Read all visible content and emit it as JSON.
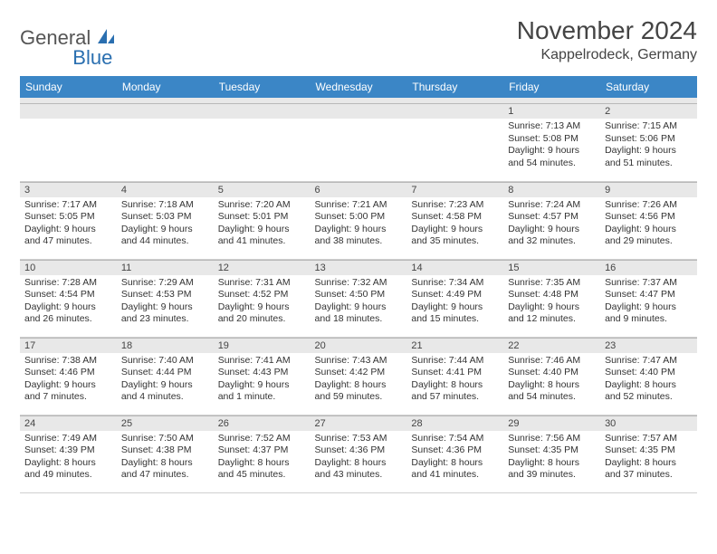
{
  "logo": {
    "word1": "General",
    "word2": "Blue"
  },
  "title": "November 2024",
  "location": "Kappelrodeck, Germany",
  "header_bg": "#3b86c6",
  "weekdays": [
    "Sunday",
    "Monday",
    "Tuesday",
    "Wednesday",
    "Thursday",
    "Friday",
    "Saturday"
  ],
  "weeks": [
    [
      null,
      null,
      null,
      null,
      null,
      {
        "d": "1",
        "sr": "Sunrise: 7:13 AM",
        "ss": "Sunset: 5:08 PM",
        "dl": "Daylight: 9 hours and 54 minutes."
      },
      {
        "d": "2",
        "sr": "Sunrise: 7:15 AM",
        "ss": "Sunset: 5:06 PM",
        "dl": "Daylight: 9 hours and 51 minutes."
      }
    ],
    [
      {
        "d": "3",
        "sr": "Sunrise: 7:17 AM",
        "ss": "Sunset: 5:05 PM",
        "dl": "Daylight: 9 hours and 47 minutes."
      },
      {
        "d": "4",
        "sr": "Sunrise: 7:18 AM",
        "ss": "Sunset: 5:03 PM",
        "dl": "Daylight: 9 hours and 44 minutes."
      },
      {
        "d": "5",
        "sr": "Sunrise: 7:20 AM",
        "ss": "Sunset: 5:01 PM",
        "dl": "Daylight: 9 hours and 41 minutes."
      },
      {
        "d": "6",
        "sr": "Sunrise: 7:21 AM",
        "ss": "Sunset: 5:00 PM",
        "dl": "Daylight: 9 hours and 38 minutes."
      },
      {
        "d": "7",
        "sr": "Sunrise: 7:23 AM",
        "ss": "Sunset: 4:58 PM",
        "dl": "Daylight: 9 hours and 35 minutes."
      },
      {
        "d": "8",
        "sr": "Sunrise: 7:24 AM",
        "ss": "Sunset: 4:57 PM",
        "dl": "Daylight: 9 hours and 32 minutes."
      },
      {
        "d": "9",
        "sr": "Sunrise: 7:26 AM",
        "ss": "Sunset: 4:56 PM",
        "dl": "Daylight: 9 hours and 29 minutes."
      }
    ],
    [
      {
        "d": "10",
        "sr": "Sunrise: 7:28 AM",
        "ss": "Sunset: 4:54 PM",
        "dl": "Daylight: 9 hours and 26 minutes."
      },
      {
        "d": "11",
        "sr": "Sunrise: 7:29 AM",
        "ss": "Sunset: 4:53 PM",
        "dl": "Daylight: 9 hours and 23 minutes."
      },
      {
        "d": "12",
        "sr": "Sunrise: 7:31 AM",
        "ss": "Sunset: 4:52 PM",
        "dl": "Daylight: 9 hours and 20 minutes."
      },
      {
        "d": "13",
        "sr": "Sunrise: 7:32 AM",
        "ss": "Sunset: 4:50 PM",
        "dl": "Daylight: 9 hours and 18 minutes."
      },
      {
        "d": "14",
        "sr": "Sunrise: 7:34 AM",
        "ss": "Sunset: 4:49 PM",
        "dl": "Daylight: 9 hours and 15 minutes."
      },
      {
        "d": "15",
        "sr": "Sunrise: 7:35 AM",
        "ss": "Sunset: 4:48 PM",
        "dl": "Daylight: 9 hours and 12 minutes."
      },
      {
        "d": "16",
        "sr": "Sunrise: 7:37 AM",
        "ss": "Sunset: 4:47 PM",
        "dl": "Daylight: 9 hours and 9 minutes."
      }
    ],
    [
      {
        "d": "17",
        "sr": "Sunrise: 7:38 AM",
        "ss": "Sunset: 4:46 PM",
        "dl": "Daylight: 9 hours and 7 minutes."
      },
      {
        "d": "18",
        "sr": "Sunrise: 7:40 AM",
        "ss": "Sunset: 4:44 PM",
        "dl": "Daylight: 9 hours and 4 minutes."
      },
      {
        "d": "19",
        "sr": "Sunrise: 7:41 AM",
        "ss": "Sunset: 4:43 PM",
        "dl": "Daylight: 9 hours and 1 minute."
      },
      {
        "d": "20",
        "sr": "Sunrise: 7:43 AM",
        "ss": "Sunset: 4:42 PM",
        "dl": "Daylight: 8 hours and 59 minutes."
      },
      {
        "d": "21",
        "sr": "Sunrise: 7:44 AM",
        "ss": "Sunset: 4:41 PM",
        "dl": "Daylight: 8 hours and 57 minutes."
      },
      {
        "d": "22",
        "sr": "Sunrise: 7:46 AM",
        "ss": "Sunset: 4:40 PM",
        "dl": "Daylight: 8 hours and 54 minutes."
      },
      {
        "d": "23",
        "sr": "Sunrise: 7:47 AM",
        "ss": "Sunset: 4:40 PM",
        "dl": "Daylight: 8 hours and 52 minutes."
      }
    ],
    [
      {
        "d": "24",
        "sr": "Sunrise: 7:49 AM",
        "ss": "Sunset: 4:39 PM",
        "dl": "Daylight: 8 hours and 49 minutes."
      },
      {
        "d": "25",
        "sr": "Sunrise: 7:50 AM",
        "ss": "Sunset: 4:38 PM",
        "dl": "Daylight: 8 hours and 47 minutes."
      },
      {
        "d": "26",
        "sr": "Sunrise: 7:52 AM",
        "ss": "Sunset: 4:37 PM",
        "dl": "Daylight: 8 hours and 45 minutes."
      },
      {
        "d": "27",
        "sr": "Sunrise: 7:53 AM",
        "ss": "Sunset: 4:36 PM",
        "dl": "Daylight: 8 hours and 43 minutes."
      },
      {
        "d": "28",
        "sr": "Sunrise: 7:54 AM",
        "ss": "Sunset: 4:36 PM",
        "dl": "Daylight: 8 hours and 41 minutes."
      },
      {
        "d": "29",
        "sr": "Sunrise: 7:56 AM",
        "ss": "Sunset: 4:35 PM",
        "dl": "Daylight: 8 hours and 39 minutes."
      },
      {
        "d": "30",
        "sr": "Sunrise: 7:57 AM",
        "ss": "Sunset: 4:35 PM",
        "dl": "Daylight: 8 hours and 37 minutes."
      }
    ]
  ]
}
